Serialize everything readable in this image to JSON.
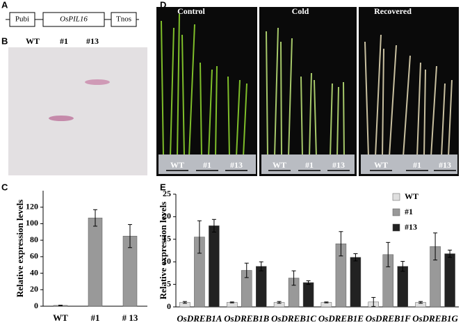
{
  "panel_labels": [
    "A",
    "B",
    "C",
    "D",
    "E"
  ],
  "construct": [
    "Pubi",
    "OsPIL16",
    "Tnos"
  ],
  "blot_lanes": [
    "WT",
    "#1",
    "#13"
  ],
  "photo_labels": {
    "conditions": [
      "Control",
      "Cold",
      "Recovered"
    ],
    "lines": [
      "WT",
      "#1",
      "#13"
    ]
  },
  "chart_data": [
    {
      "type": "bar",
      "y_label": "Relative expression levels",
      "categories": [
        "WT",
        "#1",
        "# 13"
      ],
      "values": [
        1,
        107,
        85
      ],
      "errors": [
        0.3,
        10,
        14
      ],
      "color": "#999999",
      "ylim": [
        0,
        140
      ],
      "yticks": [
        0,
        20,
        40,
        60,
        80,
        100,
        120
      ]
    },
    {
      "type": "bar",
      "y_label": "Relative expression levels",
      "categories": [
        "OsDREB1A",
        "OsDREB1B",
        "OsDREB1C",
        "OsDREB1E",
        "OsDREB1F",
        "OsDREB1G"
      ],
      "series": [
        {
          "name": "WT",
          "color": "#e0e0e0",
          "values": [
            1,
            1,
            1,
            1,
            1.1,
            1
          ],
          "errors": [
            0.2,
            0.1,
            0.2,
            0.1,
            1,
            0.2
          ]
        },
        {
          "name": "#1",
          "color": "#999999",
          "values": [
            15.5,
            8.1,
            6.4,
            14,
            11.6,
            13.4
          ],
          "errors": [
            3.6,
            1.6,
            1.6,
            2.7,
            2.7,
            3
          ]
        },
        {
          "name": "#13",
          "color": "#222222",
          "values": [
            18,
            9,
            5.4,
            11,
            9,
            11.8
          ],
          "errors": [
            1.4,
            1,
            0.4,
            0.8,
            1.1,
            0.8
          ]
        }
      ],
      "ylim": [
        0,
        25
      ],
      "yticks": [
        0,
        5,
        10,
        15,
        20,
        25
      ],
      "legend": "upper right"
    }
  ]
}
